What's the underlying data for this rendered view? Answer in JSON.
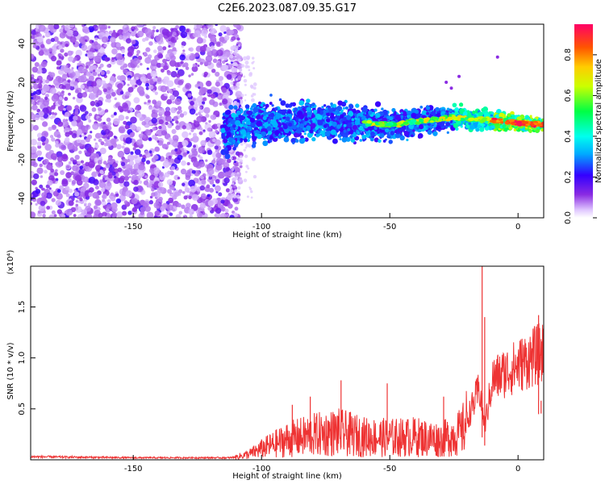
{
  "title": "C2E6.2023.087.09.35.G17",
  "chart_data": [
    {
      "type": "heatmap",
      "xlabel": "Height of straight line (km)",
      "ylabel": "Frequency (Hz)",
      "xlim": [
        -190,
        10
      ],
      "ylim": [
        -50,
        50
      ],
      "x_ticks": [
        -150,
        -100,
        -50,
        0
      ],
      "x_tick_labels": [
        "-150",
        "-100",
        "-50",
        "0"
      ],
      "y_ticks": [
        -40,
        -20,
        0,
        20,
        40
      ],
      "y_tick_labels": [
        "-40",
        "-20",
        "0",
        "20",
        "40"
      ],
      "colorbar": {
        "label": "Normalized spectral amplitude",
        "range": [
          0,
          0.95
        ],
        "ticks": [
          0.0,
          0.2,
          0.4,
          0.6,
          0.8
        ],
        "tick_labels": [
          "0.0",
          "0.2",
          "0.4",
          "0.6",
          "0.8"
        ],
        "colormap": "rainbow (white-purple-blue-cyan-green-yellow-orange-red-magenta)"
      },
      "features": {
        "noise_region_x": [
          -190,
          -112
        ],
        "noise_frequency_span": [
          -50,
          50
        ],
        "signal_band_x": [
          -115,
          10
        ],
        "signal_band_center_hz": [
          [
            -115,
            -5
          ],
          [
            -100,
            -1
          ],
          [
            -75,
            0
          ],
          [
            -50,
            -2
          ],
          [
            -25,
            2
          ],
          [
            0,
            -1
          ],
          [
            10,
            -2
          ]
        ],
        "peak_amplitude_region_x": [
          -25,
          10
        ]
      }
    },
    {
      "type": "line",
      "xlabel": "Height of straight line (km)",
      "ylabel": "SNR (10 * v/v)",
      "y_multiplier": "(x10⁴)",
      "xlim": [
        -190,
        10
      ],
      "ylim": [
        0,
        1.9
      ],
      "x_ticks": [
        -150,
        -100,
        -50,
        0
      ],
      "x_tick_labels": [
        "-150",
        "-100",
        "-50",
        "0"
      ],
      "y_ticks": [
        0.5,
        1.0,
        1.5
      ],
      "y_tick_labels": [
        "0.5",
        "1.0",
        "1.5"
      ],
      "series_color": "#ee3333",
      "envelope": [
        {
          "x": -190,
          "y": 0.03
        },
        {
          "x": -150,
          "y": 0.02
        },
        {
          "x": -112,
          "y": 0.02
        },
        {
          "x": -105,
          "y": 0.06
        },
        {
          "x": -100,
          "y": 0.12
        },
        {
          "x": -90,
          "y": 0.22
        },
        {
          "x": -80,
          "y": 0.27
        },
        {
          "x": -70,
          "y": 0.3
        },
        {
          "x": -60,
          "y": 0.25
        },
        {
          "x": -50,
          "y": 0.24
        },
        {
          "x": -40,
          "y": 0.25
        },
        {
          "x": -30,
          "y": 0.22
        },
        {
          "x": -22,
          "y": 0.3
        },
        {
          "x": -18,
          "y": 0.55
        },
        {
          "x": -15,
          "y": 0.75
        },
        {
          "x": -13,
          "y": 0.35
        },
        {
          "x": -10,
          "y": 0.85
        },
        {
          "x": 0,
          "y": 1.0
        },
        {
          "x": 10,
          "y": 1.15
        }
      ],
      "spikes": [
        {
          "x": -14,
          "y": 1.9
        },
        {
          "x": -13,
          "y": 1.4
        },
        {
          "x": -69,
          "y": 0.78
        },
        {
          "x": -51,
          "y": 0.75
        },
        {
          "x": -81,
          "y": 0.62
        },
        {
          "x": -29,
          "y": 0.62
        },
        {
          "x": -88,
          "y": 0.54
        },
        {
          "x": 8,
          "y": 1.42
        },
        {
          "x": 9,
          "y": 0.58
        }
      ]
    }
  ]
}
